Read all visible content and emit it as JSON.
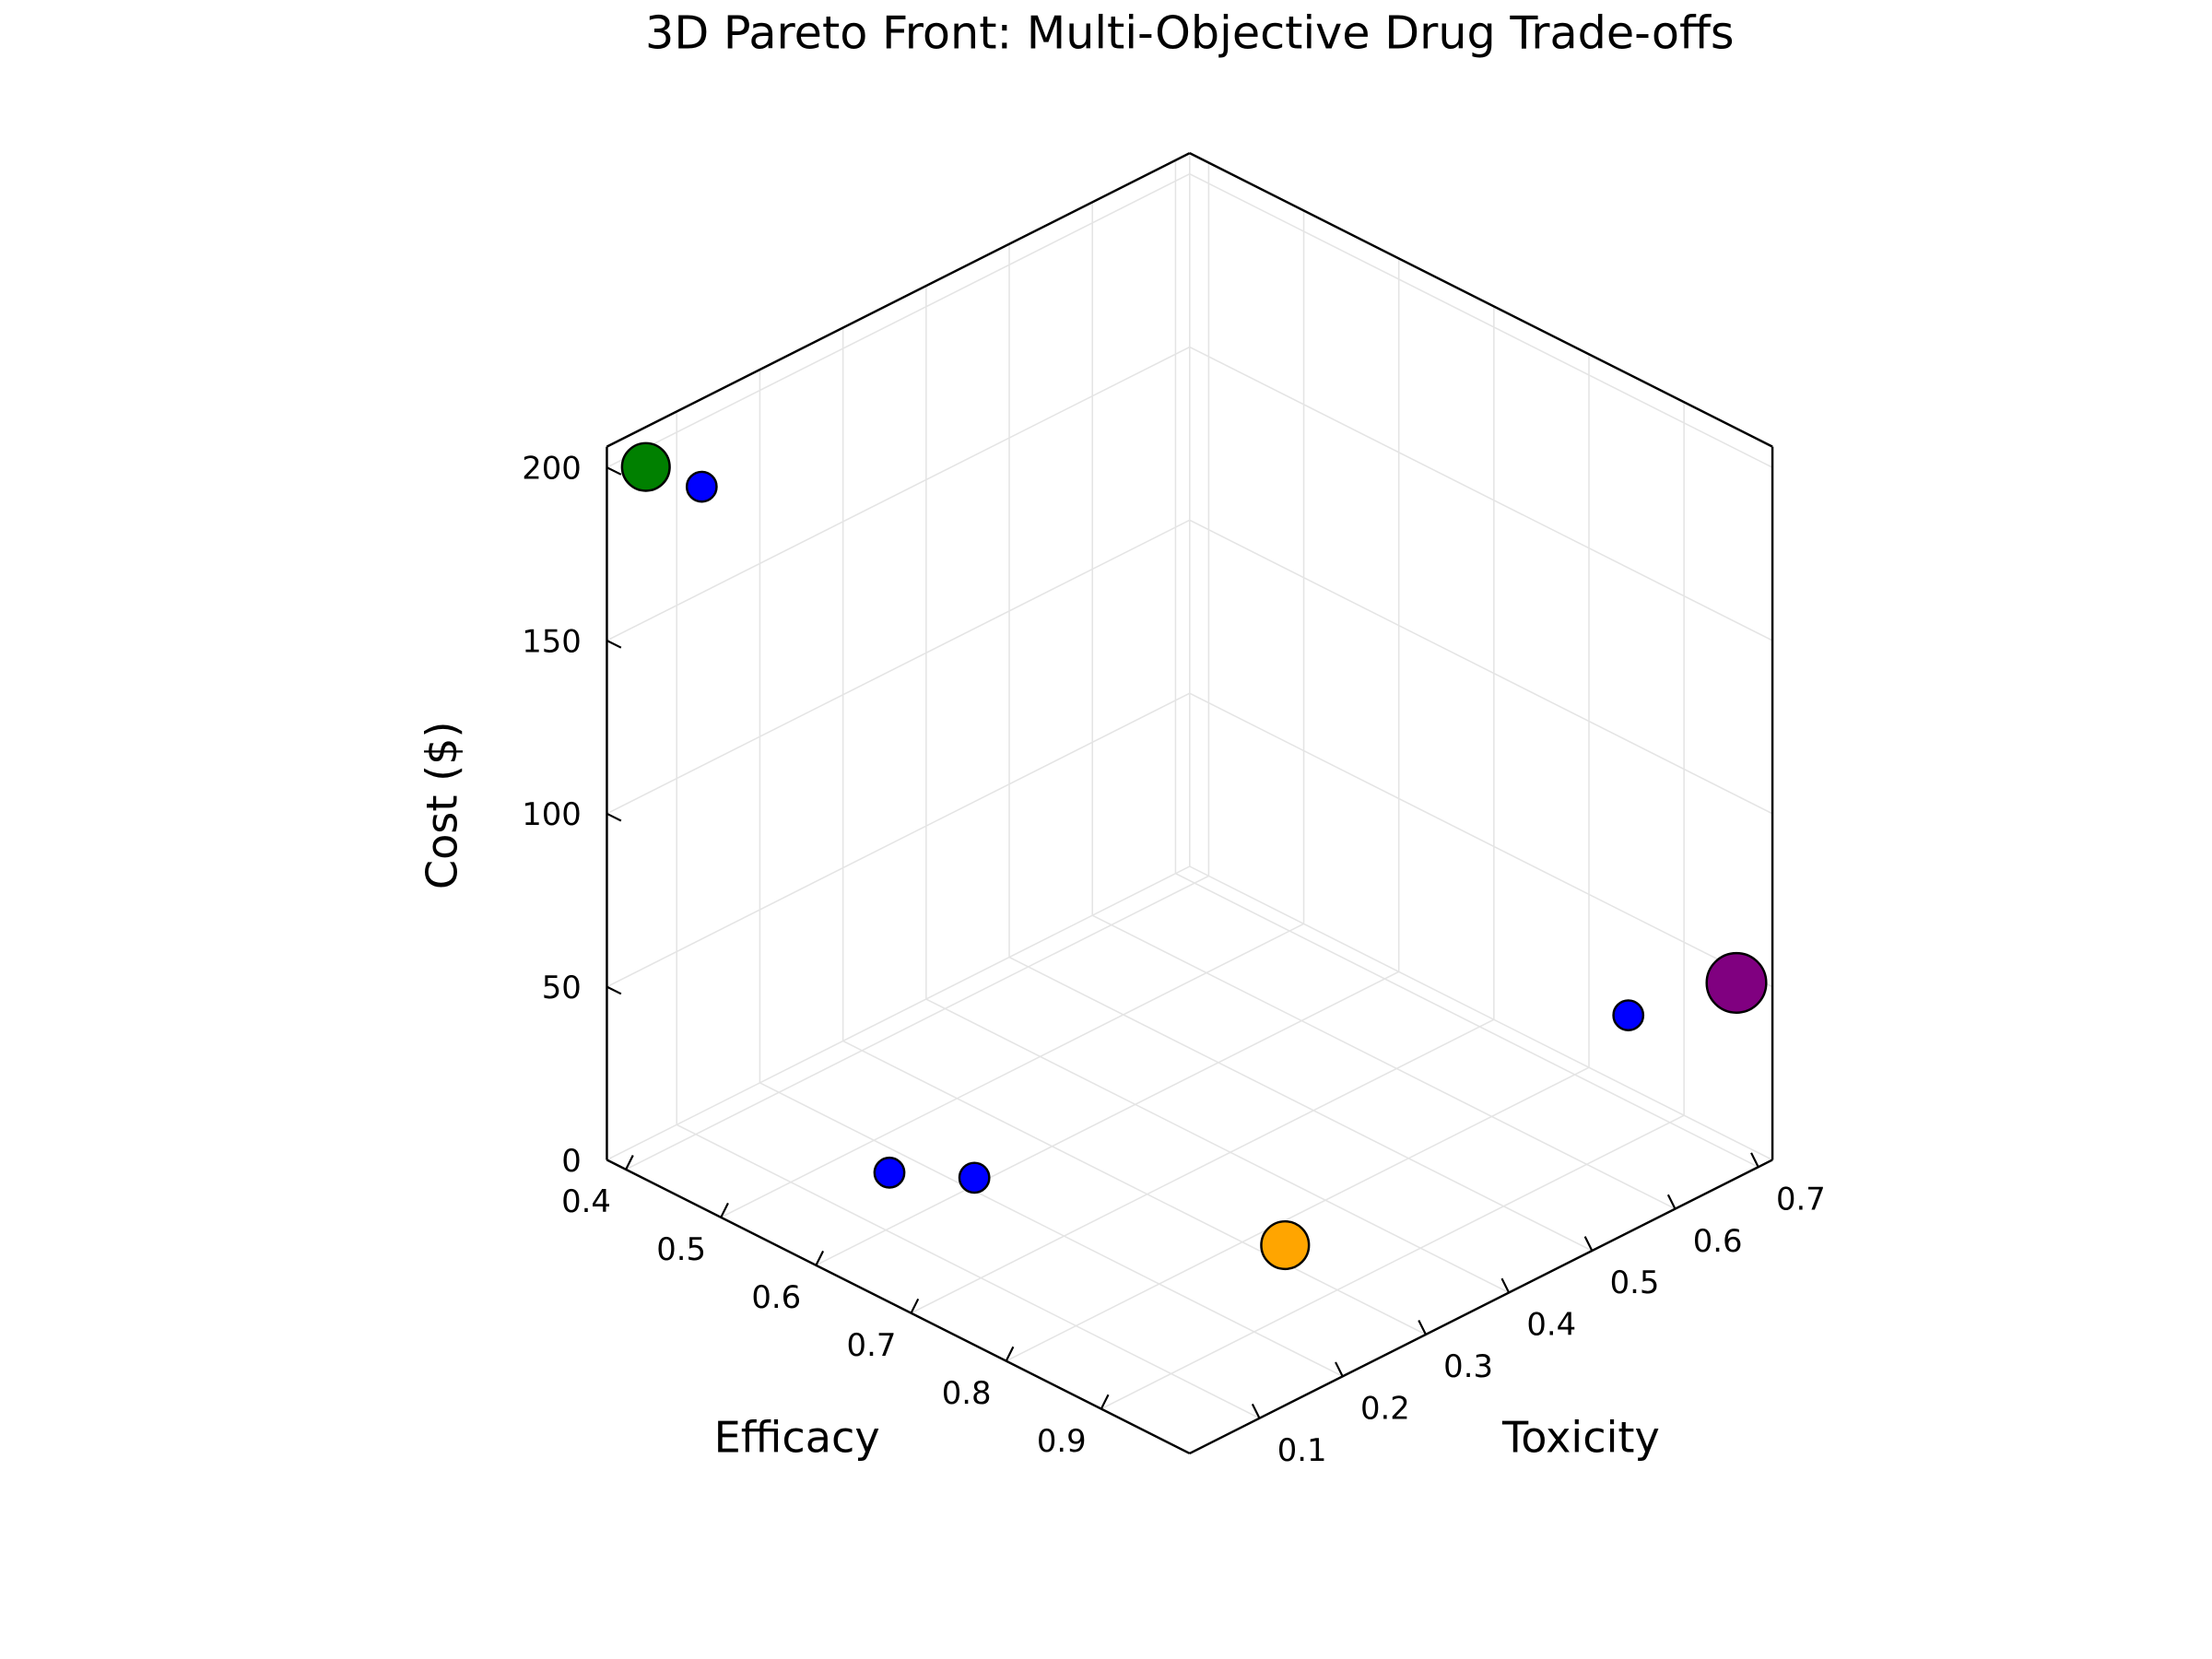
{
  "chart_data": {
    "type": "scatter",
    "projection": "3d",
    "title": "3D Pareto Front: Multi-Objective Drug Trade-offs",
    "xlabel": "Efficacy",
    "ylabel": "Toxicity",
    "zlabel": "Cost ($)",
    "xlim": [
      0.38,
      0.993
    ],
    "ylim": [
      0.016,
      0.717
    ],
    "zlim": [
      0,
      206
    ],
    "xticks": [
      "0.4",
      "0.5",
      "0.6",
      "0.7",
      "0.8",
      "0.9"
    ],
    "yticks": [
      "0.1",
      "0.2",
      "0.3",
      "0.4",
      "0.5",
      "0.6",
      "0.7"
    ],
    "zticks": [
      "0",
      "50",
      "100",
      "150",
      "200"
    ],
    "grid": true,
    "legend": "none",
    "points": [
      {
        "efficacy": 0.4,
        "toxicity": 0.04,
        "cost": 200,
        "color": "#008000",
        "marker_size": 8
      },
      {
        "efficacy": 0.45,
        "toxicity": 0.05,
        "cost": 200,
        "color": "#0000ff",
        "marker_size": 5
      },
      {
        "efficacy": 0.56,
        "toxicity": 0.15,
        "cost": 5,
        "color": "#0000ff",
        "marker_size": 5
      },
      {
        "efficacy": 0.61,
        "toxicity": 0.195,
        "cost": 5,
        "color": "#0000ff",
        "marker_size": 5
      },
      {
        "efficacy": 0.88,
        "toxicity": 0.26,
        "cost": 15,
        "color": "#ffa500",
        "marker_size": 8
      },
      {
        "efficacy": 0.9,
        "toxicity": 0.65,
        "cost": 37,
        "color": "#0000ff",
        "marker_size": 5
      },
      {
        "efficacy": 0.97,
        "toxicity": 0.7,
        "cost": 50,
        "color": "#800080",
        "marker_size": 10
      }
    ]
  }
}
